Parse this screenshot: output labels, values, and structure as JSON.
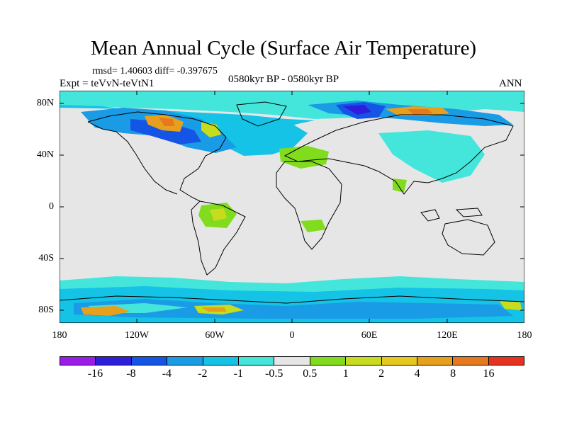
{
  "title": "Mean Annual Cycle (Surface Air Temperature)",
  "stats": "rmsd= 1.40603 diff= -0.397675",
  "experiment": "Expt = teVvN-teVtN1",
  "period": "0580kyr BP - 0580kyr BP",
  "season": "ANN",
  "axes": {
    "y_labels": [
      "80N",
      "40N",
      "0",
      "40S",
      "80S"
    ],
    "x_labels": [
      "180",
      "120W",
      "60W",
      "0",
      "60E",
      "120E",
      "180"
    ]
  },
  "colorbar": {
    "colors": [
      "#9b1ee8",
      "#2e1edc",
      "#1455e6",
      "#1a9be6",
      "#14c3e6",
      "#44e6dc",
      "#e6e6e6",
      "#82dc1e",
      "#c8dc1e",
      "#e6c81e",
      "#e6a01e",
      "#e6781e",
      "#e6321e"
    ],
    "labels": [
      "-16",
      "-8",
      "-4",
      "-2",
      "-1",
      "-0.5",
      "0.5",
      "1",
      "2",
      "4",
      "8",
      "16"
    ]
  }
}
